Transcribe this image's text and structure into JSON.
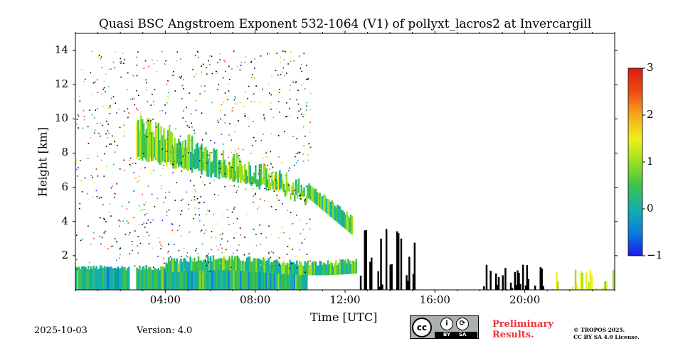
{
  "chart_data": {
    "type": "heatmap",
    "title": "Quasi BSC Angstroem Exponent 532-1064 (V1) of pollyxt_lacros2 at Invercargill",
    "xlabel": "Time [UTC]",
    "ylabel": "Height [km]",
    "x_unit": "hours UTC",
    "xlim": [
      0,
      24
    ],
    "ylim": [
      0,
      15
    ],
    "x_ticks": [
      4,
      8,
      12,
      16,
      20
    ],
    "x_tick_labels": [
      "04:00",
      "08:00",
      "12:00",
      "16:00",
      "20:00"
    ],
    "y_ticks": [
      2,
      4,
      6,
      8,
      10,
      12,
      14
    ],
    "y_tick_labels": [
      "2",
      "4",
      "6",
      "8",
      "10",
      "12",
      "14"
    ],
    "colorbar": {
      "range": [
        -1,
        3
      ],
      "ticks": [
        -1,
        0,
        1,
        2,
        3
      ],
      "tick_labels": [
        "−1",
        "0",
        "1",
        "2",
        "3"
      ],
      "colormap": [
        "#1a1ae6",
        "#0a7fe0",
        "#12b0a8",
        "#3ec24a",
        "#9be022",
        "#eef01a",
        "#f7a81a",
        "#f04a14",
        "#d81e10"
      ]
    },
    "features": [
      {
        "name": "boundary-layer",
        "t_start": 0.0,
        "t_end": 10.3,
        "h_low": 0.0,
        "h_high": 1.3,
        "value": 0.2
      },
      {
        "name": "aerosol-layer",
        "t_start": 4.0,
        "t_end": 12.5,
        "h_low": 1.0,
        "h_high": 2.0,
        "value": 0.4
      },
      {
        "name": "cirrus-cloud",
        "t_start": 2.7,
        "t_end": 10.3,
        "h_low": 5.5,
        "h_high": 9.8,
        "value": 0.7
      },
      {
        "name": "cirrus-tail",
        "t_start": 10.3,
        "t_end": 12.3,
        "h_low": 3.2,
        "h_high": 6.5,
        "value": 0.6
      },
      {
        "name": "low-clouds",
        "t_start": 12.6,
        "t_end": 15.2,
        "h_low": 0.0,
        "h_high": 3.7,
        "value": -1.5
      },
      {
        "name": "low-clouds-evening",
        "t_start": 17.9,
        "t_end": 21.0,
        "h_low": 0.0,
        "h_high": 1.6,
        "value": -1.5
      },
      {
        "name": "surface-layer-late",
        "t_start": 21.2,
        "t_end": 24.0,
        "h_low": 0.0,
        "h_high": 1.2,
        "value": 1.2
      }
    ]
  },
  "footer": {
    "date": "2025-10-03",
    "version": "Version: 4.0",
    "preliminary_line1": "Preliminary",
    "preliminary_line2": "Results.",
    "copyright_line1": "© TROPOS 2025.",
    "copyright_line2": "CC BY SA 4.0 License.",
    "license_badge": {
      "cc": "cc",
      "by": "BY",
      "sa": "SA"
    }
  }
}
